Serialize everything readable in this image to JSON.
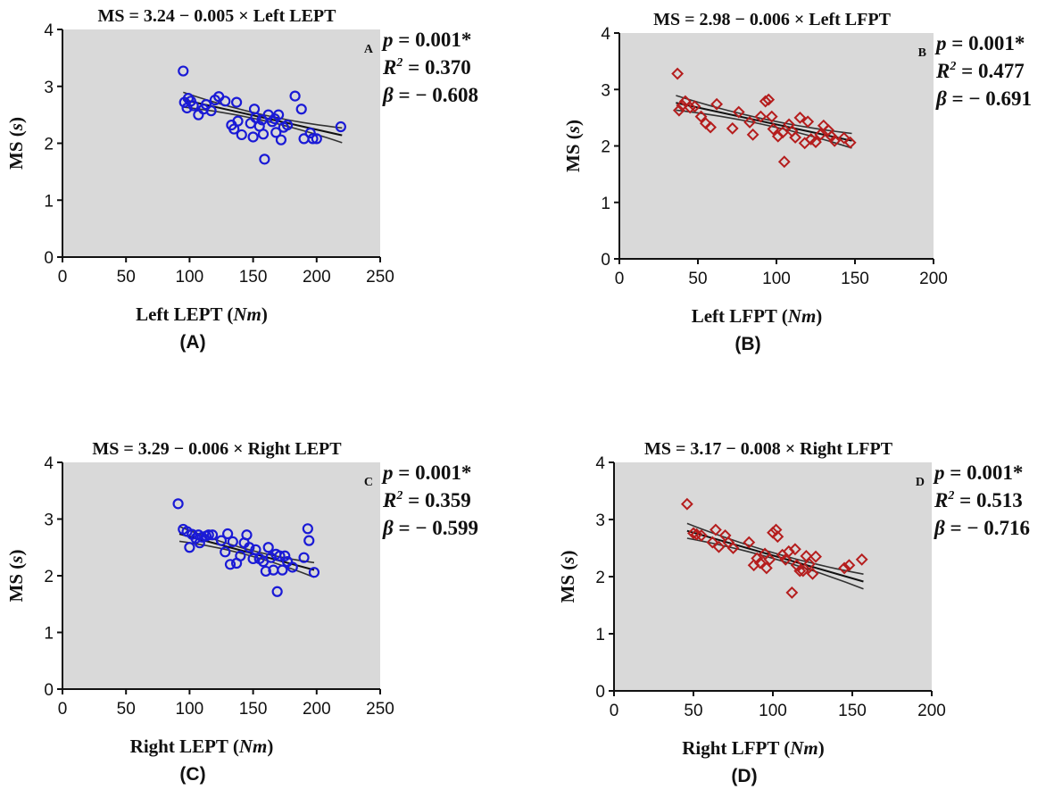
{
  "chart_data": [
    {
      "type": "scatter",
      "panel_label": "(A)",
      "corner_letter": "A",
      "equation": "MS = 3.24 − 0.005 × Left LEPT",
      "stats": {
        "p": "0.001*",
        "r2": "0.370",
        "beta": "− 0.608"
      },
      "xlabel": "Left LEPT",
      "xunit": "Nm",
      "ylabel": "MS",
      "yunit": "s",
      "xlim": [
        0,
        250
      ],
      "ylim": [
        0,
        4
      ],
      "xticks": [
        0,
        50,
        100,
        150,
        200,
        250
      ],
      "yticks": [
        0,
        1,
        2,
        3,
        4
      ],
      "marker": "circle",
      "color": "#1a1ad6",
      "regression": {
        "intercept": 3.24,
        "slope": -0.005,
        "x_range": [
          95,
          220
        ]
      },
      "points": [
        [
          95,
          3.27
        ],
        [
          96,
          2.72
        ],
        [
          98,
          2.62
        ],
        [
          99,
          2.79
        ],
        [
          101,
          2.74
        ],
        [
          103,
          2.66
        ],
        [
          107,
          2.5
        ],
        [
          111,
          2.6
        ],
        [
          113,
          2.68
        ],
        [
          117,
          2.57
        ],
        [
          120,
          2.76
        ],
        [
          123,
          2.82
        ],
        [
          128,
          2.74
        ],
        [
          133,
          2.32
        ],
        [
          135,
          2.25
        ],
        [
          137,
          2.72
        ],
        [
          138,
          2.39
        ],
        [
          141,
          2.15
        ],
        [
          148,
          2.35
        ],
        [
          150,
          2.11
        ],
        [
          151,
          2.6
        ],
        [
          152,
          2.45
        ],
        [
          155,
          2.3
        ],
        [
          157,
          2.41
        ],
        [
          158,
          2.16
        ],
        [
          159,
          1.72
        ],
        [
          162,
          2.5
        ],
        [
          165,
          2.38
        ],
        [
          167,
          2.43
        ],
        [
          168,
          2.19
        ],
        [
          170,
          2.5
        ],
        [
          172,
          2.06
        ],
        [
          174,
          2.28
        ],
        [
          177,
          2.32
        ],
        [
          183,
          2.83
        ],
        [
          188,
          2.6
        ],
        [
          190,
          2.08
        ],
        [
          195,
          2.18
        ],
        [
          197,
          2.08
        ],
        [
          200,
          2.08
        ],
        [
          219,
          2.29
        ]
      ]
    },
    {
      "type": "scatter",
      "panel_label": "(B)",
      "corner_letter": "B",
      "equation": "MS = 2.98 − 0.006 × Left LFPT",
      "stats": {
        "p": "0.001*",
        "r2": "0.477",
        "beta": "− 0.691"
      },
      "xlabel": "Left LFPT",
      "xunit": "Nm",
      "ylabel": "MS",
      "yunit": "s",
      "xlim": [
        0,
        200
      ],
      "ylim": [
        0,
        4
      ],
      "xticks": [
        0,
        50,
        100,
        150,
        200
      ],
      "yticks": [
        0,
        1,
        2,
        3,
        4
      ],
      "marker": "diamond",
      "color": "#b51d1d",
      "regression": {
        "intercept": 2.98,
        "slope": -0.006,
        "x_range": [
          36,
          148
        ]
      },
      "points": [
        [
          37,
          3.28
        ],
        [
          38,
          2.63
        ],
        [
          40,
          2.72
        ],
        [
          42,
          2.79
        ],
        [
          45,
          2.68
        ],
        [
          48,
          2.7
        ],
        [
          52,
          2.52
        ],
        [
          55,
          2.4
        ],
        [
          58,
          2.33
        ],
        [
          62,
          2.74
        ],
        [
          72,
          2.31
        ],
        [
          76,
          2.6
        ],
        [
          83,
          2.42
        ],
        [
          85,
          2.2
        ],
        [
          90,
          2.52
        ],
        [
          93,
          2.79
        ],
        [
          95,
          2.82
        ],
        [
          97,
          2.52
        ],
        [
          98,
          2.3
        ],
        [
          101,
          2.17
        ],
        [
          104,
          2.24
        ],
        [
          105,
          1.72
        ],
        [
          108,
          2.38
        ],
        [
          110,
          2.26
        ],
        [
          112,
          2.15
        ],
        [
          115,
          2.5
        ],
        [
          118,
          2.05
        ],
        [
          120,
          2.43
        ],
        [
          122,
          2.12
        ],
        [
          125,
          2.07
        ],
        [
          128,
          2.2
        ],
        [
          130,
          2.36
        ],
        [
          133,
          2.28
        ],
        [
          135,
          2.17
        ],
        [
          137,
          2.09
        ],
        [
          143,
          2.14
        ],
        [
          147,
          2.06
        ]
      ]
    },
    {
      "type": "scatter",
      "panel_label": "(C)",
      "corner_letter": "C",
      "equation": "MS = 3.29 − 0.006 × Right LEPT",
      "stats": {
        "p": "0.001*",
        "r2": "0.359",
        "beta": "− 0.599"
      },
      "xlabel": "Right LEPT",
      "xunit": "Nm",
      "ylabel": "MS",
      "yunit": "s",
      "xlim": [
        0,
        250
      ],
      "ylim": [
        0,
        4
      ],
      "xticks": [
        0,
        50,
        100,
        150,
        200,
        250
      ],
      "yticks": [
        0,
        1,
        2,
        3,
        4
      ],
      "marker": "circle",
      "color": "#1a1ad6",
      "regression": {
        "intercept": 3.29,
        "slope": -0.006,
        "x_range": [
          92,
          198
        ]
      },
      "points": [
        [
          91,
          3.27
        ],
        [
          95,
          2.82
        ],
        [
          98,
          2.78
        ],
        [
          100,
          2.5
        ],
        [
          102,
          2.73
        ],
        [
          105,
          2.66
        ],
        [
          107,
          2.72
        ],
        [
          108,
          2.58
        ],
        [
          110,
          2.68
        ],
        [
          113,
          2.7
        ],
        [
          115,
          2.72
        ],
        [
          118,
          2.72
        ],
        [
          125,
          2.62
        ],
        [
          128,
          2.42
        ],
        [
          130,
          2.74
        ],
        [
          132,
          2.2
        ],
        [
          134,
          2.6
        ],
        [
          137,
          2.22
        ],
        [
          140,
          2.35
        ],
        [
          143,
          2.58
        ],
        [
          145,
          2.72
        ],
        [
          147,
          2.5
        ],
        [
          150,
          2.3
        ],
        [
          152,
          2.46
        ],
        [
          155,
          2.3
        ],
        [
          158,
          2.25
        ],
        [
          160,
          2.08
        ],
        [
          162,
          2.5
        ],
        [
          164,
          2.32
        ],
        [
          166,
          2.1
        ],
        [
          168,
          2.38
        ],
        [
          169,
          1.72
        ],
        [
          171,
          2.35
        ],
        [
          173,
          2.1
        ],
        [
          175,
          2.35
        ],
        [
          177,
          2.25
        ],
        [
          181,
          2.15
        ],
        [
          190,
          2.32
        ],
        [
          193,
          2.83
        ],
        [
          194,
          2.62
        ],
        [
          198,
          2.06
        ]
      ]
    },
    {
      "type": "scatter",
      "panel_label": "(D)",
      "corner_letter": "D",
      "equation": "MS = 3.17 − 0.008 × Right LFPT",
      "stats": {
        "p": "0.001*",
        "r2": "0.513",
        "beta": "− 0.716"
      },
      "xlabel": "Right LFPT",
      "xunit": "Nm",
      "ylabel": "MS",
      "yunit": "s",
      "xlim": [
        0,
        200
      ],
      "ylim": [
        0,
        4
      ],
      "xticks": [
        0,
        50,
        100,
        150,
        200
      ],
      "yticks": [
        0,
        1,
        2,
        3,
        4
      ],
      "marker": "diamond",
      "color": "#b51d1d",
      "regression": {
        "intercept": 3.17,
        "slope": -0.008,
        "x_range": [
          46,
          157
        ]
      },
      "points": [
        [
          46,
          3.27
        ],
        [
          50,
          2.76
        ],
        [
          52,
          2.74
        ],
        [
          55,
          2.72
        ],
        [
          62,
          2.6
        ],
        [
          64,
          2.82
        ],
        [
          66,
          2.52
        ],
        [
          70,
          2.72
        ],
        [
          72,
          2.6
        ],
        [
          75,
          2.5
        ],
        [
          85,
          2.6
        ],
        [
          88,
          2.2
        ],
        [
          90,
          2.32
        ],
        [
          92,
          2.24
        ],
        [
          95,
          2.4
        ],
        [
          96,
          2.15
        ],
        [
          98,
          2.3
        ],
        [
          100,
          2.77
        ],
        [
          102,
          2.82
        ],
        [
          103,
          2.7
        ],
        [
          106,
          2.38
        ],
        [
          108,
          2.3
        ],
        [
          110,
          2.44
        ],
        [
          112,
          1.72
        ],
        [
          114,
          2.48
        ],
        [
          115,
          2.2
        ],
        [
          117,
          2.1
        ],
        [
          119,
          2.1
        ],
        [
          121,
          2.36
        ],
        [
          123,
          2.22
        ],
        [
          125,
          2.05
        ],
        [
          127,
          2.35
        ],
        [
          145,
          2.15
        ],
        [
          148,
          2.2
        ],
        [
          156,
          2.3
        ]
      ]
    }
  ]
}
